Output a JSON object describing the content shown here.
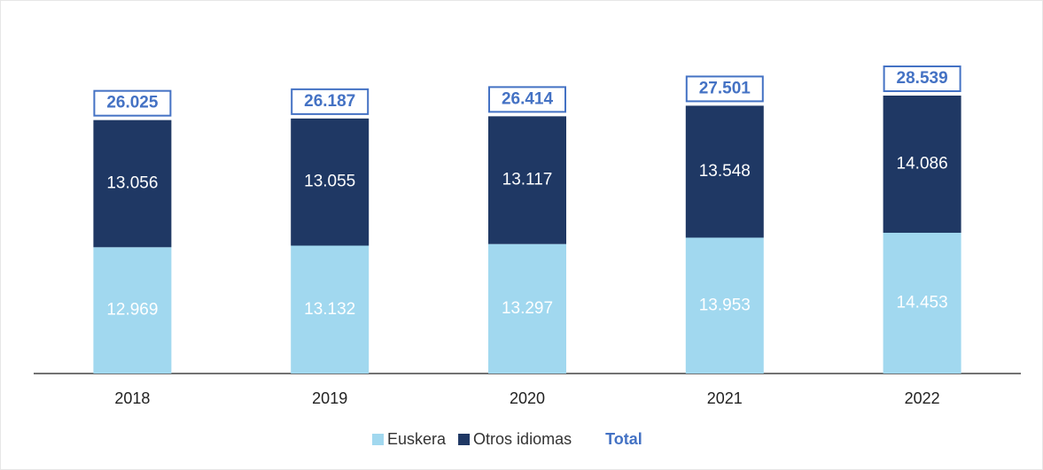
{
  "chart_data": {
    "type": "stacked_bar",
    "categories": [
      "2018",
      "2019",
      "2020",
      "2021",
      "2022"
    ],
    "series": [
      {
        "name": "Euskera",
        "color": "#a1d8ef",
        "values": [
          12969,
          13132,
          13297,
          13953,
          14453
        ],
        "value_labels": [
          "12.969",
          "13.132",
          "13.297",
          "13.953",
          "14.453"
        ]
      },
      {
        "name": "Otros idiomas",
        "color": "#1f3864",
        "values": [
          13056,
          13055,
          13117,
          13548,
          14086
        ],
        "value_labels": [
          "13.056",
          "13.055",
          "13.117",
          "13.548",
          "14.086"
        ]
      }
    ],
    "totals": {
      "name": "Total",
      "color": "#4472c4",
      "values": [
        26025,
        26187,
        26414,
        27501,
        28539
      ],
      "value_labels": [
        "26.025",
        "26.187",
        "26.414",
        "27.501",
        "28.539"
      ]
    },
    "legend": "bottom"
  }
}
